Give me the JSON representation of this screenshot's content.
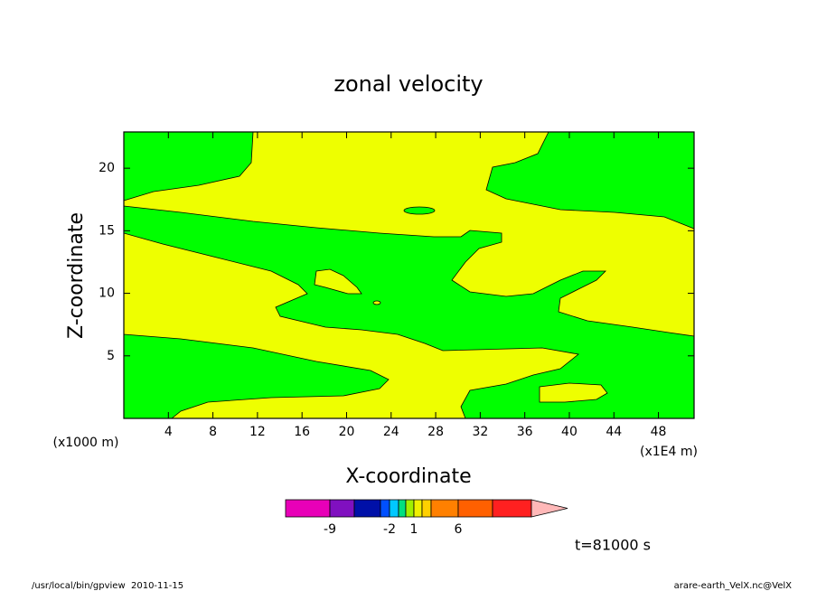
{
  "chart_data": {
    "type": "contour",
    "title": "zonal velocity",
    "x_label": "X-coordinate",
    "y_label": "Z-coordinate",
    "x_unit_left": "(x1000 m)",
    "x_unit_right": "(x1E4 m)",
    "xlim": [
      0,
      51.2
    ],
    "xticks": [
      4,
      8,
      12,
      16,
      20,
      24,
      28,
      32,
      36,
      40,
      44,
      48
    ],
    "ylim": [
      0,
      22.9
    ],
    "yticks": [
      5,
      10,
      15,
      20
    ],
    "region_colors": {
      "low": "#00ff00",
      "high": "#eeff00"
    },
    "colorbar": {
      "colors": [
        "#e800b8",
        "#8010c0",
        "#0010a8",
        "#0050ff",
        "#00c8ff",
        "#00e080",
        "#a0f000",
        "#f0f000",
        "#ffd000",
        "#ff8000",
        "#ff6000",
        "#ff2020",
        "#ff8078",
        "#ffb8b8"
      ],
      "ticks": [
        -9,
        -2,
        1,
        6
      ]
    },
    "time_label": "t=81000 s"
  },
  "footer": {
    "left": "/usr/local/bin/gpview  2010-11-15",
    "right": "arare-earth_VelX.nc@VelX"
  }
}
